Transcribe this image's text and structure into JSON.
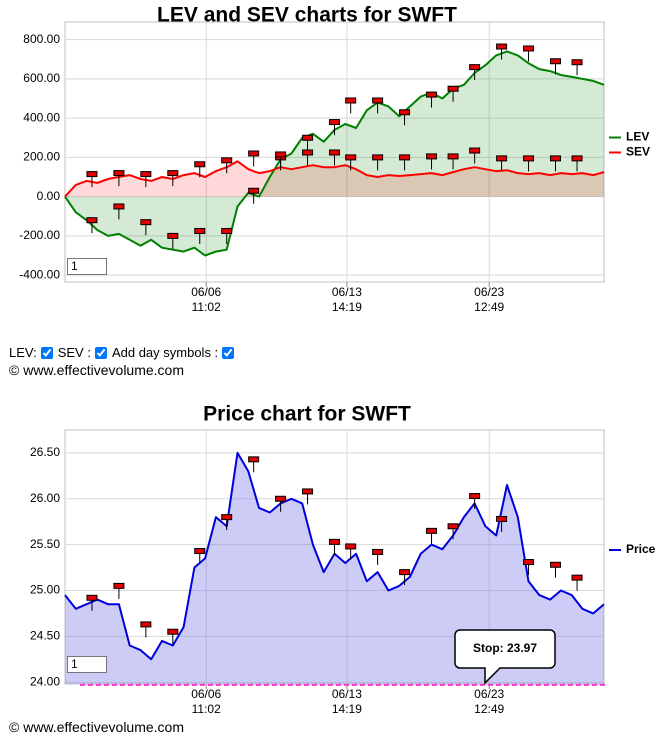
{
  "chart_data": [
    {
      "type": "line",
      "title": "LEV and SEV charts for SWFT",
      "x": [
        0,
        2,
        4,
        6,
        8,
        10,
        12,
        14,
        16,
        18,
        20,
        22,
        24,
        26,
        28,
        30,
        32,
        34,
        36,
        38,
        40,
        42,
        44,
        46,
        48,
        50,
        52,
        54,
        56,
        58,
        60,
        62,
        64,
        66,
        68,
        70,
        72,
        74,
        76,
        78,
        80,
        82,
        84,
        86,
        88,
        90,
        92,
        94,
        96,
        98,
        100
      ],
      "xlim": [
        0,
        100
      ],
      "xticks": [
        {
          "value": 26.2,
          "label": [
            "06/06",
            "11:02"
          ]
        },
        {
          "value": 52.3,
          "label": [
            "06/13",
            "14:19"
          ]
        },
        {
          "value": 78.7,
          "label": [
            "06/23",
            "12:49"
          ]
        }
      ],
      "ylim": [
        -435,
        890
      ],
      "yticks": [
        {
          "value": 800,
          "label": "800.00"
        },
        {
          "value": 600,
          "label": "600.00"
        },
        {
          "value": 400,
          "label": "400.00"
        },
        {
          "value": 200,
          "label": "200.00"
        },
        {
          "value": 0,
          "label": "0.00"
        },
        {
          "value": -200,
          "label": "-200.00"
        },
        {
          "value": -400,
          "label": "-400.00"
        }
      ],
      "grid": true,
      "legend": "right",
      "day_x": [
        5,
        10,
        15,
        20,
        25,
        30,
        35,
        40,
        45,
        50,
        53,
        58,
        63,
        68,
        72,
        76,
        81,
        86,
        91,
        95
      ],
      "series": [
        {
          "name": "LEV",
          "color": "#008000",
          "fill": "rgba(0,128,0,0.17)",
          "values": [
            0,
            -80,
            -120,
            -170,
            -200,
            -190,
            -220,
            -250,
            -220,
            -260,
            -270,
            -280,
            -260,
            -300,
            -280,
            -270,
            -50,
            20,
            0,
            100,
            190,
            220,
            300,
            320,
            280,
            340,
            370,
            350,
            440,
            480,
            460,
            410,
            460,
            510,
            530,
            500,
            550,
            570,
            630,
            670,
            720,
            740,
            720,
            680,
            650,
            640,
            620,
            610,
            600,
            590,
            570
          ],
          "day_values": [
            -120,
            -50,
            -130,
            -200,
            -175,
            -175,
            30,
            200,
            300,
            380,
            490,
            490,
            430,
            520,
            550,
            660,
            765,
            755,
            690,
            685
          ]
        },
        {
          "name": "SEV",
          "color": "#ff0000",
          "fill": "rgba(255,0,0,0.15)",
          "values": [
            0,
            60,
            80,
            70,
            90,
            100,
            110,
            90,
            80,
            100,
            90,
            110,
            120,
            100,
            130,
            150,
            180,
            140,
            120,
            130,
            150,
            140,
            150,
            160,
            150,
            150,
            160,
            140,
            110,
            100,
            110,
            105,
            110,
            115,
            120,
            110,
            125,
            140,
            150,
            140,
            130,
            135,
            120,
            115,
            120,
            110,
            120,
            115,
            120,
            110,
            125
          ],
          "day_values": [
            115,
            120,
            115,
            120,
            165,
            185,
            220,
            215,
            225,
            225,
            200,
            200,
            200,
            205,
            205,
            235,
            195,
            195,
            195,
            195
          ]
        }
      ]
    },
    {
      "type": "line",
      "title": "Price chart for SWFT",
      "x": [
        0,
        2,
        4,
        6,
        8,
        10,
        12,
        14,
        16,
        18,
        20,
        22,
        24,
        26,
        28,
        30,
        32,
        34,
        36,
        38,
        40,
        42,
        44,
        46,
        48,
        50,
        52,
        54,
        56,
        58,
        60,
        62,
        64,
        66,
        68,
        70,
        72,
        74,
        76,
        78,
        80,
        82,
        84,
        86,
        88,
        90,
        92,
        94,
        96,
        98,
        100
      ],
      "xlim": [
        0,
        100
      ],
      "xticks": [
        {
          "value": 26.2,
          "label": [
            "06/06",
            "11:02"
          ]
        },
        {
          "value": 52.3,
          "label": [
            "06/13",
            "14:19"
          ]
        },
        {
          "value": 78.7,
          "label": [
            "06/23",
            "12:49"
          ]
        }
      ],
      "ylim": [
        23.98,
        26.75
      ],
      "yticks": [
        {
          "value": 26.5,
          "label": "26.50"
        },
        {
          "value": 26,
          "label": "26.00"
        },
        {
          "value": 25.5,
          "label": "25.50"
        },
        {
          "value": 25,
          "label": "25.00"
        },
        {
          "value": 24.5,
          "label": "24.50"
        },
        {
          "value": 24,
          "label": "24.00"
        }
      ],
      "grid": true,
      "legend": "right",
      "day_x": [
        5,
        10,
        15,
        20,
        25,
        30,
        35,
        40,
        45,
        50,
        53,
        58,
        63,
        68,
        72,
        76,
        81,
        86,
        91,
        95
      ],
      "series": [
        {
          "name": "Price",
          "color": "#0000dd",
          "fill": "rgba(120,120,235,0.38)",
          "values": [
            24.95,
            24.8,
            24.85,
            24.9,
            24.85,
            24.85,
            24.4,
            24.35,
            24.25,
            24.45,
            24.4,
            24.6,
            25.25,
            25.35,
            25.8,
            25.7,
            26.5,
            26.3,
            25.9,
            25.85,
            25.95,
            26.0,
            25.95,
            25.5,
            25.2,
            25.4,
            25.3,
            25.4,
            25.1,
            25.2,
            25.0,
            25.05,
            25.15,
            25.4,
            25.5,
            25.45,
            25.6,
            25.8,
            25.95,
            25.7,
            25.6,
            26.15,
            25.8,
            25.1,
            24.95,
            24.9,
            25.0,
            24.95,
            24.8,
            24.75,
            24.85
          ],
          "day_values": [
            24.92,
            25.05,
            24.63,
            24.55,
            25.43,
            25.8,
            26.43,
            26.0,
            26.08,
            25.53,
            25.48,
            25.42,
            25.2,
            25.65,
            25.7,
            26.03,
            25.78,
            25.31,
            25.28,
            25.14
          ]
        }
      ],
      "stop": {
        "value": 23.97,
        "label": "Stop: 23.97",
        "color": "#ff33cc"
      }
    }
  ],
  "controls": {
    "lev": "LEV:",
    "sev": "SEV :",
    "day_symbols": "Add day symbols :"
  },
  "copyright": "© www.effectivevolume.com",
  "range_input": "1"
}
